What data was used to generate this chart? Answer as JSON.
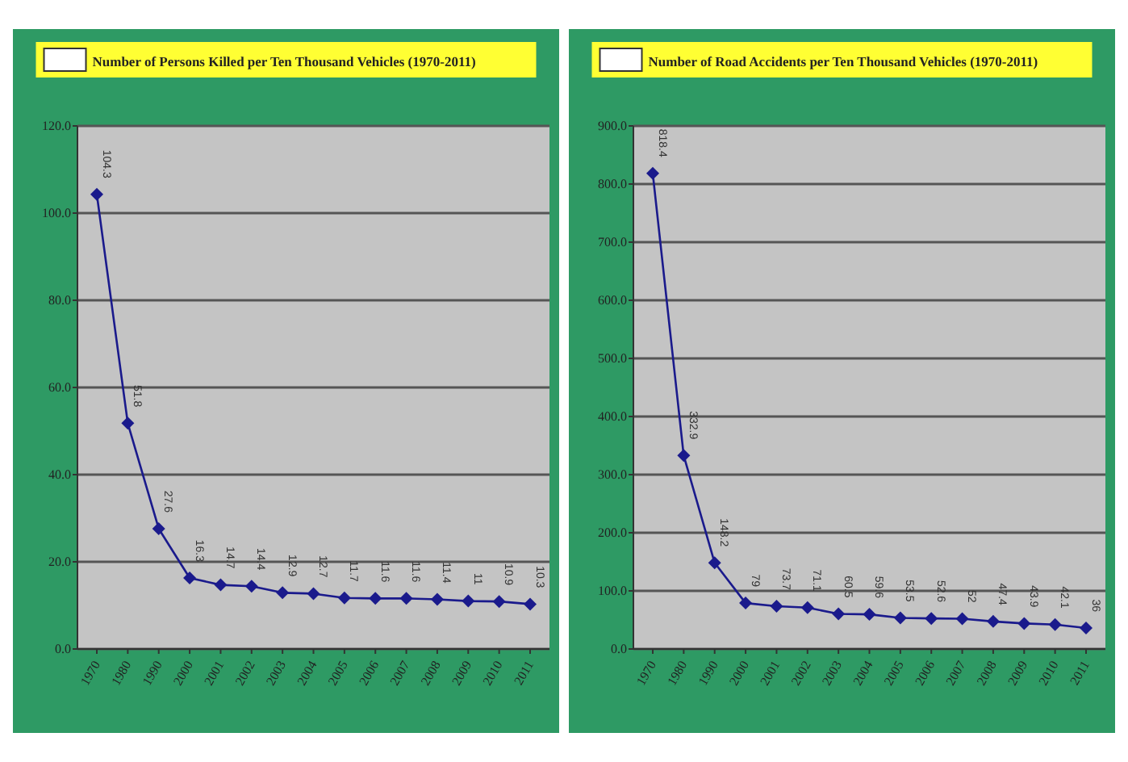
{
  "chart_data": [
    {
      "type": "line",
      "title": "Number of Persons Killed per Ten Thousand Vehicles (1970-2011)",
      "categories": [
        "1970",
        "1980",
        "1990",
        "2000",
        "2001",
        "2002",
        "2003",
        "2004",
        "2005",
        "2006",
        "2007",
        "2008",
        "2009",
        "2010",
        "2011"
      ],
      "series": [
        {
          "color": "#1a1a8c",
          "values": [
            104.3,
            51.8,
            27.6,
            16.3,
            14.7,
            14.4,
            12.9,
            12.7,
            11.7,
            11.6,
            11.6,
            11.4,
            11.0,
            10.9,
            10.3
          ]
        }
      ],
      "ylim": [
        0,
        120
      ],
      "yticks": [
        {
          "value": 0,
          "label": "0.0"
        },
        {
          "value": 20,
          "label": "20.0"
        },
        {
          "value": 40,
          "label": "40.0"
        },
        {
          "value": 60,
          "label": "60.0"
        },
        {
          "value": 80,
          "label": "80.0"
        },
        {
          "value": 100,
          "label": "100.0"
        },
        {
          "value": 120,
          "label": "120.0"
        }
      ],
      "grid": "y",
      "marker": "diamond",
      "data_labels": true
    },
    {
      "type": "line",
      "title": "Number of Road Accidents per Ten Thousand Vehicles (1970-2011)",
      "categories": [
        "1970",
        "1980",
        "1990",
        "2000",
        "2001",
        "2002",
        "2003",
        "2004",
        "2005",
        "2006",
        "2007",
        "2008",
        "2009",
        "2010",
        "2011"
      ],
      "series": [
        {
          "color": "#1a1a8c",
          "values": [
            818.4,
            332.9,
            148.2,
            79.0,
            73.7,
            71.1,
            60.5,
            59.6,
            53.5,
            52.6,
            52.0,
            47.4,
            43.9,
            42.1,
            36.0
          ]
        }
      ],
      "ylim": [
        0,
        900
      ],
      "yticks": [
        {
          "value": 0,
          "label": "0.0"
        },
        {
          "value": 100,
          "label": "100.0"
        },
        {
          "value": 200,
          "label": "200.0"
        },
        {
          "value": 300,
          "label": "300.0"
        },
        {
          "value": 400,
          "label": "400.0"
        },
        {
          "value": 500,
          "label": "500.0"
        },
        {
          "value": 600,
          "label": "600.0"
        },
        {
          "value": 700,
          "label": "700.0"
        },
        {
          "value": 800,
          "label": "800.0"
        },
        {
          "value": 900,
          "label": "900.0"
        }
      ],
      "grid": "y",
      "marker": "diamond",
      "data_labels": true
    }
  ]
}
